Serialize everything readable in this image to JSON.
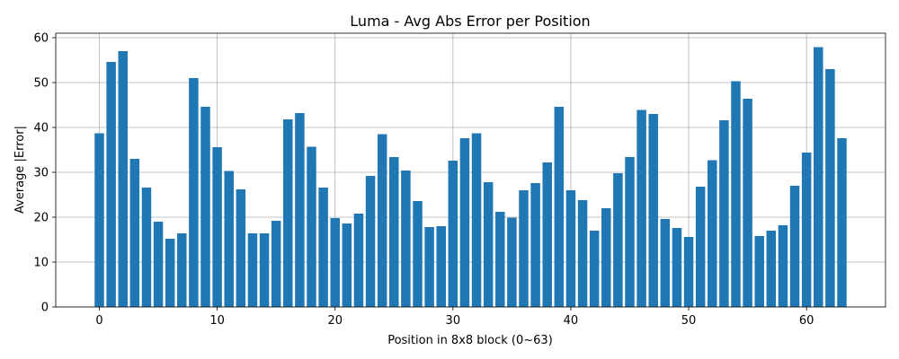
{
  "chart_data": {
    "type": "bar",
    "title": "Luma - Avg Abs Error per Position",
    "xlabel": "Position in 8x8 block (0~63)",
    "ylabel": "Average |Error|",
    "xlim": [
      -3.7,
      66.7
    ],
    "ylim": [
      0,
      61
    ],
    "xticks": [
      0,
      10,
      20,
      30,
      40,
      50,
      60
    ],
    "yticks": [
      0,
      10,
      20,
      30,
      40,
      50,
      60
    ],
    "grid": true,
    "color": "#1f77b4",
    "x": [
      0,
      1,
      2,
      3,
      4,
      5,
      6,
      7,
      8,
      9,
      10,
      11,
      12,
      13,
      14,
      15,
      16,
      17,
      18,
      19,
      20,
      21,
      22,
      23,
      24,
      25,
      26,
      27,
      28,
      29,
      30,
      31,
      32,
      33,
      34,
      35,
      36,
      37,
      38,
      39,
      40,
      41,
      42,
      43,
      44,
      45,
      46,
      47,
      48,
      49,
      50,
      51,
      52,
      53,
      54,
      55,
      56,
      57,
      58,
      59,
      60,
      61,
      62,
      63
    ],
    "values": [
      38.7,
      54.6,
      57.0,
      33.0,
      26.6,
      19.0,
      15.2,
      16.4,
      51.0,
      44.6,
      35.6,
      30.3,
      26.2,
      16.4,
      16.4,
      19.2,
      41.8,
      43.2,
      35.7,
      26.6,
      19.8,
      18.6,
      20.8,
      29.2,
      38.5,
      33.4,
      30.4,
      23.6,
      17.8,
      18.0,
      32.6,
      37.6,
      38.7,
      27.8,
      21.2,
      19.9,
      26.0,
      27.6,
      32.2,
      44.6,
      26.0,
      23.8,
      17.0,
      22.0,
      29.8,
      33.4,
      43.9,
      43.0,
      19.6,
      17.6,
      15.6,
      26.8,
      32.7,
      41.6,
      50.3,
      46.4,
      15.8,
      17.0,
      18.2,
      27.0,
      34.4,
      57.9,
      53.0,
      37.6
    ]
  }
}
